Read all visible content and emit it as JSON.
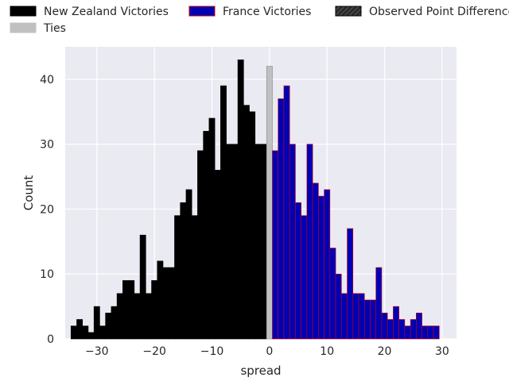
{
  "chart_data": {
    "type": "bar",
    "title": "",
    "xlabel": "spread",
    "ylabel": "Count",
    "xlim": [
      -35.5,
      32.5
    ],
    "ylim": [
      0,
      45
    ],
    "bin_width": 1,
    "grid": true,
    "x_ticks": [
      -30,
      -20,
      -10,
      0,
      10,
      20,
      30
    ],
    "x_tick_labels": [
      "−30",
      "−20",
      "−10",
      "0",
      "10",
      "20",
      "30"
    ],
    "y_ticks": [
      0,
      10,
      20,
      30,
      40
    ],
    "y_tick_labels": [
      "0",
      "10",
      "20",
      "30",
      "40"
    ],
    "legend": {
      "placement": "top",
      "entries": [
        {
          "label": "New Zealand Victories",
          "color": "#000000",
          "edge": "#000000",
          "hatch": false
        },
        {
          "label": "France Victories",
          "color": "#0000b4",
          "edge": "#cc0000",
          "hatch": false
        },
        {
          "label": "Observed Point Difference",
          "color": "#404040",
          "edge": "#000000",
          "hatch": true
        },
        {
          "label": "Ties",
          "color": "#c0c0c0",
          "edge": "#c0c0c0",
          "hatch": false
        }
      ]
    },
    "series": [
      {
        "name": "New Zealand Victories",
        "color": "#000000",
        "edge": "#000000",
        "x": [
          -34,
          -33,
          -32,
          -31,
          -30,
          -29,
          -28,
          -27,
          -26,
          -25,
          -24,
          -23,
          -22,
          -21,
          -20,
          -19,
          -18,
          -17,
          -16,
          -15,
          -14,
          -13,
          -12,
          -11,
          -10,
          -9,
          -8,
          -7,
          -6,
          -5,
          -4,
          -3,
          -2,
          -1
        ],
        "values": [
          2,
          3,
          2,
          1,
          5,
          2,
          4,
          5,
          7,
          9,
          9,
          7,
          16,
          7,
          9,
          12,
          11,
          11,
          19,
          21,
          23,
          19,
          29,
          32,
          34,
          26,
          39,
          30,
          30,
          43,
          36,
          35,
          30,
          30
        ]
      },
      {
        "name": "Ties",
        "color": "#c0c0c0",
        "edge": "#888888",
        "x": [
          0
        ],
        "values": [
          42
        ]
      },
      {
        "name": "France Victories",
        "color": "#0000b4",
        "edge": "#cc0000",
        "x": [
          1,
          2,
          3,
          4,
          5,
          6,
          7,
          8,
          9,
          10,
          11,
          12,
          13,
          14,
          15,
          16,
          17,
          18,
          19,
          20,
          21,
          22,
          23,
          24,
          25,
          26,
          27,
          28,
          29
        ],
        "values": [
          29,
          37,
          39,
          30,
          21,
          19,
          30,
          24,
          22,
          23,
          14,
          10,
          7,
          17,
          7,
          7,
          6,
          6,
          11,
          4,
          3,
          5,
          3,
          2,
          3,
          4,
          2,
          2,
          2
        ]
      }
    ]
  }
}
